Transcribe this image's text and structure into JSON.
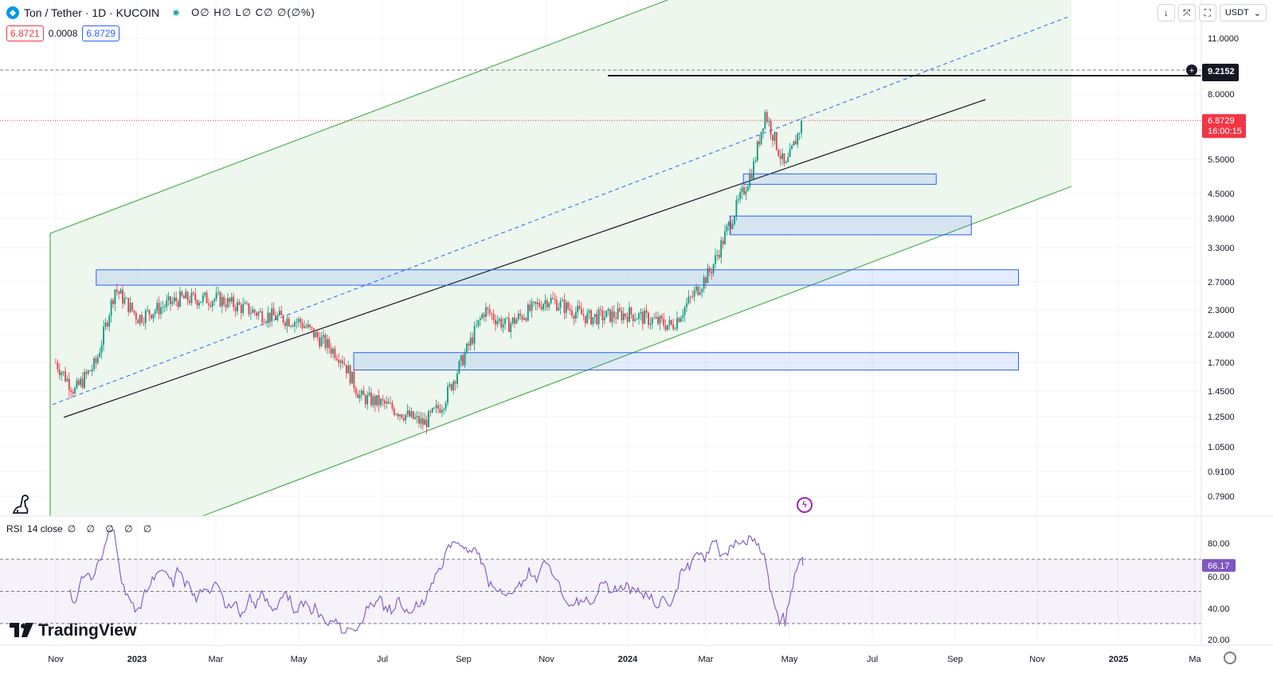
{
  "header": {
    "symbol_title": "Ton / Tether · 1D · KUCOIN",
    "ohlc_text": "O∅ H∅ L∅ C∅ ∅(∅%)",
    "sell_price": "6.8721",
    "spread": "0.0008",
    "buy_price": "6.8729"
  },
  "toolbar": {
    "currency": "USDT",
    "buttons": [
      "arrow-down-icon",
      "collapse-icon",
      "fullscreen-icon"
    ]
  },
  "rsi": {
    "label": "RSI",
    "params": "14 close",
    "values_text": "∅ ∅ ∅ ∅ ∅",
    "current": "66.17"
  },
  "brand": {
    "name": "TradingView"
  },
  "colors": {
    "up": "#089981",
    "down": "#f23645",
    "channel": "#4caf50",
    "zone": "#2962ff",
    "rsi": "#7e57c2"
  },
  "chart_data": [
    {
      "type": "candlestick",
      "scale": "log",
      "yticks": [
        "11.0000",
        "8.0000",
        "5.5000",
        "4.5000",
        "3.9000",
        "3.3000",
        "2.7000",
        "2.3000",
        "2.0000",
        "1.7000",
        "1.4500",
        "1.2500",
        "1.0500",
        "0.9100",
        "0.7900"
      ],
      "xticks": [
        "Nov",
        "2023",
        "Mar",
        "May",
        "Jul",
        "Sep",
        "Nov",
        "2024",
        "Mar",
        "May",
        "Jul",
        "Sep",
        "Nov",
        "2025",
        "Ma"
      ],
      "price_labels": [
        {
          "value": "9.2152",
          "kind": "horizontal-line"
        },
        {
          "value": "6.8729",
          "time": "16:00:15",
          "kind": "last-price"
        }
      ],
      "series_close_approx": [
        [
          "2022-11-01",
          1.7
        ],
        [
          "2022-11-15",
          1.45
        ],
        [
          "2022-12-01",
          1.7
        ],
        [
          "2022-12-15",
          2.6
        ],
        [
          "2023-01-01",
          2.2
        ],
        [
          "2023-02-01",
          2.45
        ],
        [
          "2023-03-01",
          2.45
        ],
        [
          "2023-04-01",
          2.25
        ],
        [
          "2023-05-01",
          2.15
        ],
        [
          "2023-06-01",
          1.75
        ],
        [
          "2023-06-15",
          1.4
        ],
        [
          "2023-07-01",
          1.35
        ],
        [
          "2023-08-01",
          1.2
        ],
        [
          "2023-08-15",
          1.35
        ],
        [
          "2023-09-01",
          1.8
        ],
        [
          "2023-09-15",
          2.3
        ],
        [
          "2023-10-01",
          2.1
        ],
        [
          "2023-11-01",
          2.45
        ],
        [
          "2023-12-01",
          2.2
        ],
        [
          "2024-01-01",
          2.25
        ],
        [
          "2024-02-01",
          2.1
        ],
        [
          "2024-03-01",
          2.9
        ],
        [
          "2024-03-15",
          3.8
        ],
        [
          "2024-04-01",
          5.2
        ],
        [
          "2024-04-10",
          7.2
        ],
        [
          "2024-04-25",
          5.2
        ],
        [
          "2024-05-08",
          6.87
        ]
      ],
      "zones": [
        {
          "from": "2022-12-01",
          "to": "2024-10-15",
          "low": 2.65,
          "high": 2.9
        },
        {
          "from": "2023-06-10",
          "to": "2024-10-15",
          "low": 1.63,
          "high": 1.8
        },
        {
          "from": "2024-03-15",
          "to": "2024-09-10",
          "low": 3.55,
          "high": 3.95
        },
        {
          "from": "2024-03-25",
          "to": "2024-08-15",
          "low": 4.75,
          "high": 5.05
        }
      ]
    },
    {
      "type": "line",
      "name": "RSI 14 close",
      "yticks": [
        "80.00",
        "60.00",
        "40.00",
        "20.00"
      ],
      "bands": [
        70,
        50,
        30
      ],
      "last": 66.17
    }
  ]
}
